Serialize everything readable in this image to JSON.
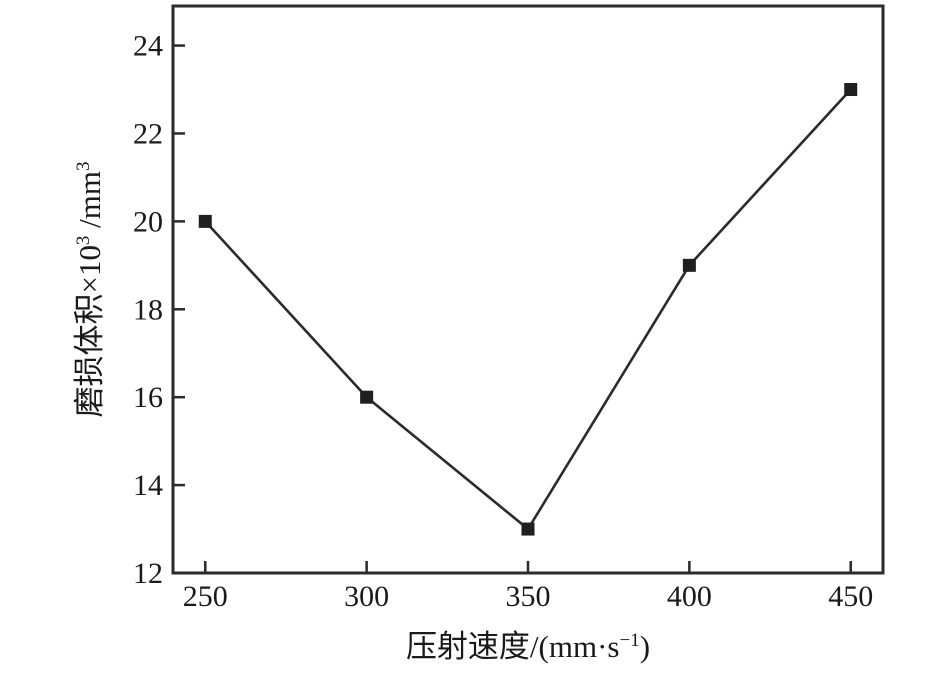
{
  "page": {
    "background": "#ffffff"
  },
  "chart_data": {
    "type": "line",
    "title": "",
    "x": [
      250,
      300,
      350,
      400,
      450
    ],
    "series": [
      {
        "name": "磨损体积",
        "values": [
          20,
          16,
          13,
          19,
          23
        ]
      }
    ],
    "xlabel": "压射速度/(mm·s⁻¹)",
    "ylabel": "磨损体积×10³ /mm³",
    "xlabel_parts": [
      {
        "text": "压射速度/(mm·s",
        "sup": false
      },
      {
        "text": "−1",
        "sup": true
      },
      {
        "text": ")",
        "sup": false
      }
    ],
    "ylabel_parts": [
      {
        "text": "磨损体积×10",
        "sup": false
      },
      {
        "text": "3",
        "sup": true
      },
      {
        "text": " /mm",
        "sup": false
      },
      {
        "text": "3",
        "sup": true
      }
    ],
    "xlim": [
      240,
      460
    ],
    "ylim": [
      12,
      24.9
    ],
    "x_ticks": [
      250,
      300,
      350,
      400,
      450
    ],
    "y_ticks": [
      12,
      14,
      16,
      18,
      20,
      22,
      24
    ],
    "grid": false,
    "legend": "none",
    "marker": "filled-square",
    "colors": {
      "line": "#2b2b2b",
      "frame": "#2b2b2b",
      "marker": "#1f1f1f",
      "text": "#1a1a1a"
    }
  }
}
